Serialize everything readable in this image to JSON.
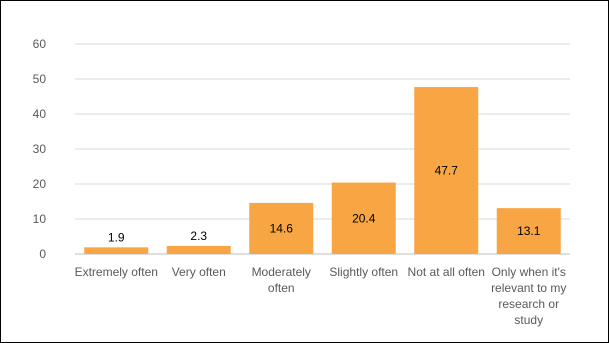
{
  "chart_data": {
    "type": "bar",
    "title": "",
    "xlabel": "",
    "ylabel": "",
    "ylim": [
      0,
      60
    ],
    "yticks": [
      "0",
      "10",
      "20",
      "30",
      "40",
      "50",
      "60"
    ],
    "categories": [
      "Extremely often",
      "Very often",
      "Moderately often",
      "Slightly often",
      "Not at all often",
      "Only when it's relevant to my research or study"
    ],
    "values": [
      1.9,
      2.3,
      14.6,
      20.4,
      47.7,
      13.1
    ],
    "data_labels": [
      "1.9",
      "2.3",
      "14.6",
      "20.4",
      "47.7",
      "13.1"
    ],
    "grid": true,
    "legend": "none",
    "colors": {
      "bar": "#F8A643",
      "grid": "#D9D9D9",
      "axis": "#BFBFBF"
    }
  }
}
